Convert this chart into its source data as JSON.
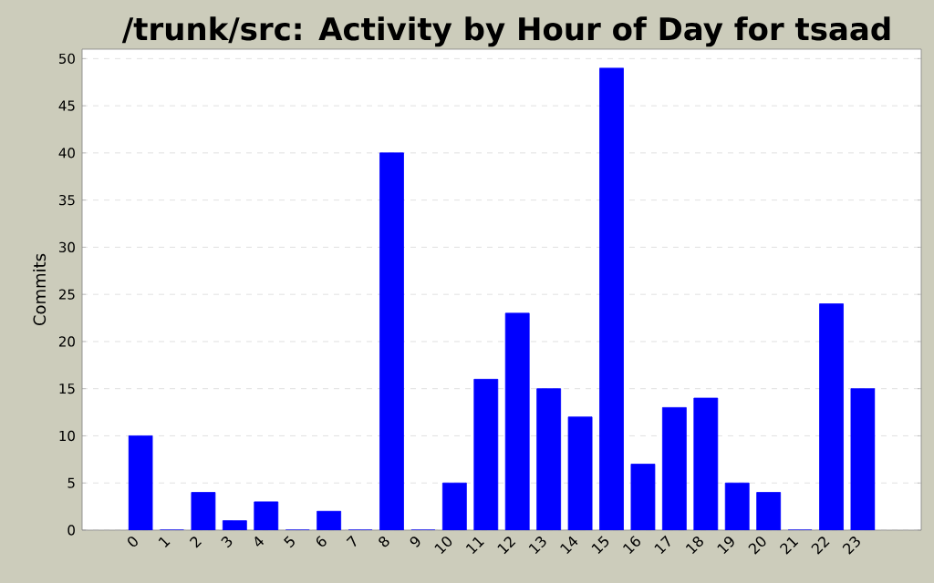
{
  "chart_data": {
    "type": "bar",
    "title": "/trunk/src: Activity by Hour of Day for tsaad",
    "ylabel": "Commits",
    "categories": [
      "0",
      "1",
      "2",
      "3",
      "4",
      "5",
      "6",
      "7",
      "8",
      "9",
      "10",
      "11",
      "12",
      "13",
      "14",
      "15",
      "16",
      "17",
      "18",
      "19",
      "20",
      "21",
      "22",
      "23"
    ],
    "values": [
      10,
      0,
      4,
      1,
      3,
      0,
      2,
      0,
      40,
      0,
      5,
      16,
      23,
      15,
      12,
      49,
      7,
      13,
      14,
      5,
      4,
      0,
      24,
      15
    ],
    "color": "#0000ff",
    "ylim": [
      0,
      51
    ],
    "yticks": [
      0,
      5,
      10,
      15,
      20,
      25,
      30,
      35,
      40,
      45,
      50
    ],
    "grid": "y"
  }
}
